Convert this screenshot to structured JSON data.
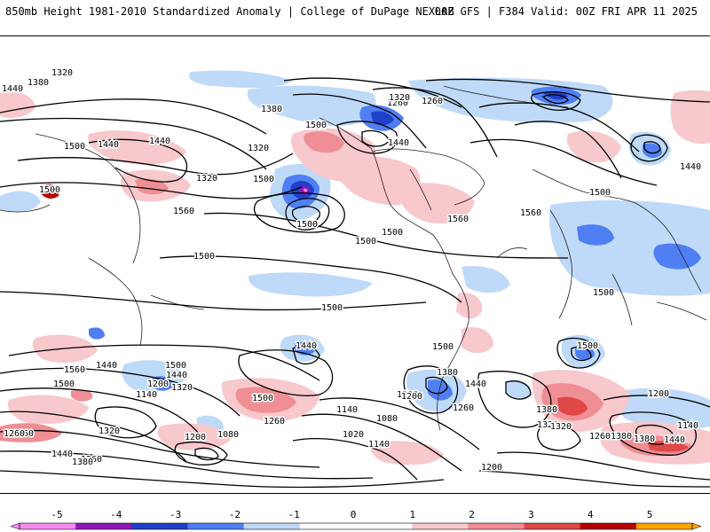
{
  "header": {
    "left": "850mb Height 1981-2010 Standardized Anomaly | College of DuPage NEXLAB",
    "right": "00Z GFS | F384 Valid: 00Z FRI APR 11 2025"
  },
  "colors": {
    "neg5": "#f48cf0",
    "neg4": "#8a1ab5",
    "neg3": "#1f40c8",
    "neg2": "#4f7ff2",
    "neg1": "#bfdaf8",
    "zero": "#ffffff",
    "pos1": "#f7c8cc",
    "pos2": "#ef8e94",
    "pos3": "#e04848",
    "pos4": "#b80000",
    "pos5": "#ffa500",
    "contour": "#000000",
    "coast": "#222222"
  },
  "colorbar": {
    "ticks": [
      "-5",
      "-4",
      "-3",
      "-2",
      "-1",
      "0",
      "1",
      "2",
      "3",
      "4",
      "5"
    ]
  },
  "contour_labels": [
    "1320",
    "1380",
    "1440",
    "1320",
    "1260",
    "1320",
    "1260",
    "1440",
    "1380",
    "1500",
    "1440",
    "1500",
    "1440",
    "1320",
    "1500",
    "1560",
    "1500",
    "1500",
    "1440",
    "1560",
    "1500",
    "1560",
    "1500",
    "1500",
    "1500",
    "1500",
    "1500",
    "1500",
    "1440",
    "1500",
    "1440",
    "1500",
    "1440",
    "1560",
    "1500",
    "1440",
    "1200",
    "1320",
    "1140",
    "1260",
    "1380",
    "1320",
    "1200",
    "1140",
    "1080",
    "1500",
    "1260",
    "1380",
    "1440",
    "1200",
    "1320",
    "1260",
    "1380",
    "1140",
    "1200",
    "1080",
    "1020",
    "1140",
    "1260",
    "1320",
    "1260",
    "1440",
    "1380",
    "1200",
    "1200",
    "1260",
    "1380",
    "1440"
  ]
}
